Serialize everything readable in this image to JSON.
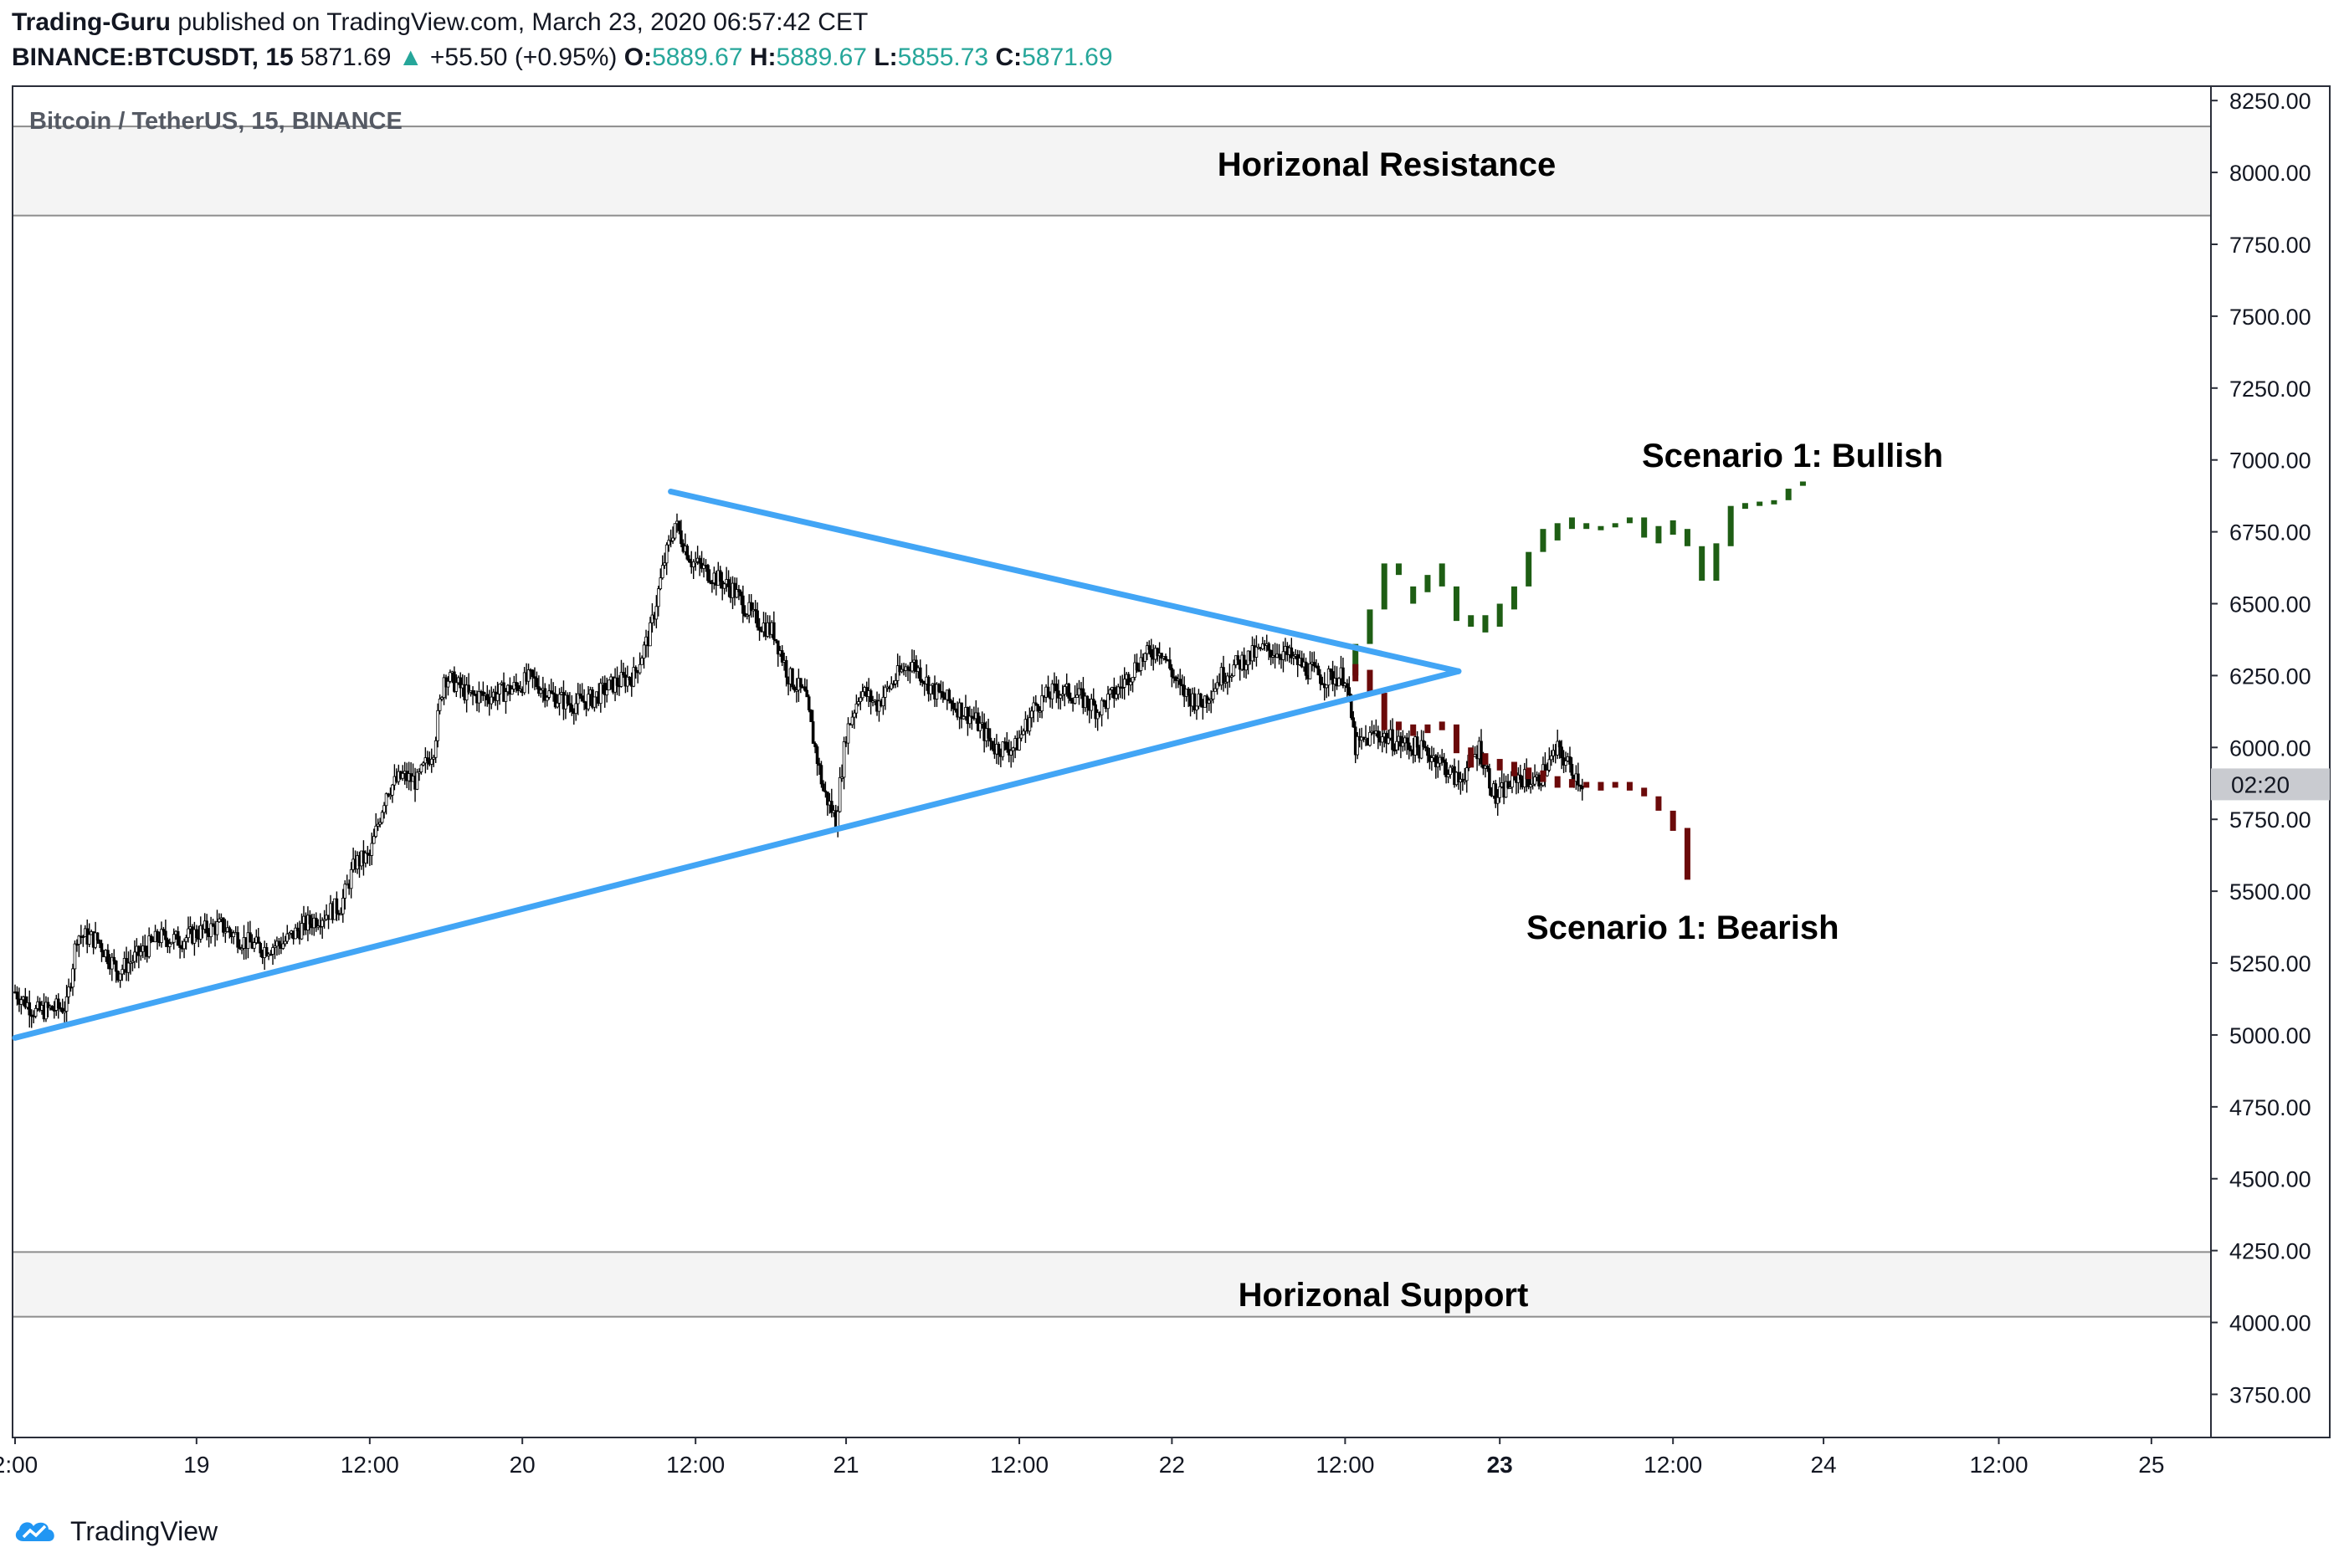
{
  "header": {
    "author": "Trading-Guru",
    "published_text": "published on TradingView.com, March 23, 2020 06:57:42 CET",
    "symbol": "BINANCE:BTCUSDT, 15",
    "last": "5871.69",
    "up_arrow": "▲",
    "change": "+55.50 (+0.95%)",
    "o_label": "O:",
    "o_value": "5889.67",
    "h_label": "H:",
    "h_value": "5889.67",
    "l_label": "L:",
    "l_value": "5855.73",
    "c_label": "C:",
    "c_value": "5871.69"
  },
  "footer": {
    "brand": "TradingView"
  },
  "chart_data": {
    "type": "candlestick",
    "title": "Bitcoin / TetherUS, 15, BINANCE",
    "y_range": [
      3600,
      8300
    ],
    "x_range_hours": [
      0,
      1060
    ],
    "y_ticks": [
      "8250.00",
      "8000.00",
      "7750.00",
      "7500.00",
      "7250.00",
      "7000.00",
      "6750.00",
      "6500.00",
      "6250.00",
      "6000.00",
      "5750.00",
      "5500.00",
      "5250.00",
      "5000.00",
      "4750.00",
      "4500.00",
      "4250.00",
      "4000.00",
      "3750.00"
    ],
    "x_ticks": [
      {
        "label": "2:00",
        "t": 0
      },
      {
        "label": "19",
        "t": 88
      },
      {
        "label": "12:00",
        "t": 172
      },
      {
        "label": "20",
        "t": 246
      },
      {
        "label": "12:00",
        "t": 330
      },
      {
        "label": "21",
        "t": 403
      },
      {
        "label": "12:00",
        "t": 487
      },
      {
        "label": "22",
        "t": 561
      },
      {
        "label": "12:00",
        "t": 645
      },
      {
        "label": "23",
        "t": 720,
        "bold": true
      },
      {
        "label": "12:00",
        "t": 804
      },
      {
        "label": "24",
        "t": 877
      },
      {
        "label": "12:00",
        "t": 962
      },
      {
        "label": "25",
        "t": 1036
      }
    ],
    "price_label": "02:20",
    "price_label_value": 5871.69,
    "zones": [
      {
        "name": "Horizonal Resistance",
        "from": 7850,
        "to": 8160
      },
      {
        "name": "Horizonal Support",
        "from": 4020,
        "to": 4245
      }
    ],
    "trendlines": [
      {
        "name": "upper-trendline",
        "from": [
          318,
          6890
        ],
        "to": [
          700,
          6265
        ]
      },
      {
        "name": "lower-trendline",
        "from": [
          0,
          4990
        ],
        "to": [
          700,
          6265
        ]
      }
    ],
    "price_path": [
      [
        0,
        5150
      ],
      [
        10,
        5080
      ],
      [
        25,
        5100
      ],
      [
        30,
        5350
      ],
      [
        40,
        5330
      ],
      [
        50,
        5220
      ],
      [
        60,
        5280
      ],
      [
        70,
        5340
      ],
      [
        80,
        5330
      ],
      [
        90,
        5360
      ],
      [
        100,
        5380
      ],
      [
        110,
        5330
      ],
      [
        120,
        5300
      ],
      [
        130,
        5320
      ],
      [
        140,
        5380
      ],
      [
        150,
        5420
      ],
      [
        158,
        5450
      ],
      [
        165,
        5600
      ],
      [
        172,
        5620
      ],
      [
        180,
        5850
      ],
      [
        188,
        5900
      ],
      [
        195,
        5880
      ],
      [
        203,
        6000
      ],
      [
        208,
        6250
      ],
      [
        214,
        6220
      ],
      [
        220,
        6180
      ],
      [
        230,
        6180
      ],
      [
        240,
        6200
      ],
      [
        250,
        6240
      ],
      [
        260,
        6180
      ],
      [
        270,
        6150
      ],
      [
        280,
        6170
      ],
      [
        290,
        6220
      ],
      [
        300,
        6250
      ],
      [
        308,
        6400
      ],
      [
        315,
        6650
      ],
      [
        320,
        6780
      ],
      [
        328,
        6650
      ],
      [
        338,
        6600
      ],
      [
        348,
        6550
      ],
      [
        358,
        6450
      ],
      [
        368,
        6400
      ],
      [
        375,
        6250
      ],
      [
        383,
        6180
      ],
      [
        392,
        5850
      ],
      [
        398,
        5750
      ],
      [
        403,
        6050
      ],
      [
        410,
        6200
      ],
      [
        418,
        6150
      ],
      [
        428,
        6250
      ],
      [
        435,
        6300
      ],
      [
        445,
        6200
      ],
      [
        455,
        6150
      ],
      [
        465,
        6100
      ],
      [
        475,
        6000
      ],
      [
        485,
        6000
      ],
      [
        495,
        6150
      ],
      [
        505,
        6200
      ],
      [
        515,
        6180
      ],
      [
        525,
        6130
      ],
      [
        535,
        6200
      ],
      [
        545,
        6300
      ],
      [
        555,
        6350
      ],
      [
        565,
        6200
      ],
      [
        575,
        6150
      ],
      [
        585,
        6250
      ],
      [
        595,
        6300
      ],
      [
        605,
        6340
      ],
      [
        615,
        6330
      ],
      [
        625,
        6280
      ],
      [
        635,
        6240
      ],
      [
        645,
        6250
      ],
      [
        650,
        6000
      ],
      [
        660,
        6050
      ],
      [
        670,
        6020
      ],
      [
        680,
        6000
      ],
      [
        690,
        5960
      ],
      [
        700,
        5880
      ],
      [
        710,
        6000
      ],
      [
        718,
        5820
      ],
      [
        728,
        5900
      ],
      [
        738,
        5880
      ],
      [
        748,
        5990
      ],
      [
        760,
        5875
      ]
    ],
    "scenarios": [
      {
        "name": "Scenario 1: Bullish",
        "color": "#1e5e14",
        "candles": [
          [
            650,
            6250,
            6360
          ],
          [
            657,
            6360,
            6480
          ],
          [
            664,
            6480,
            6640
          ],
          [
            671,
            6600,
            6640
          ],
          [
            678,
            6500,
            6560
          ],
          [
            685,
            6540,
            6600
          ],
          [
            692,
            6560,
            6640
          ],
          [
            699,
            6440,
            6560
          ],
          [
            706,
            6420,
            6460
          ],
          [
            713,
            6400,
            6460
          ],
          [
            720,
            6420,
            6500
          ],
          [
            727,
            6480,
            6560
          ],
          [
            734,
            6560,
            6680
          ],
          [
            741,
            6680,
            6760
          ],
          [
            748,
            6720,
            6780
          ],
          [
            755,
            6760,
            6800
          ],
          [
            762,
            6760,
            6780
          ],
          [
            769,
            6760,
            6770
          ],
          [
            776,
            6770,
            6780
          ],
          [
            783,
            6780,
            6800
          ],
          [
            790,
            6730,
            6800
          ],
          [
            797,
            6710,
            6770
          ],
          [
            804,
            6740,
            6790
          ],
          [
            811,
            6700,
            6760
          ],
          [
            818,
            6580,
            6700
          ],
          [
            825,
            6580,
            6710
          ],
          [
            832,
            6700,
            6840
          ],
          [
            839,
            6830,
            6850
          ],
          [
            846,
            6840,
            6855
          ],
          [
            853,
            6850,
            6860
          ],
          [
            860,
            6860,
            6900
          ],
          [
            867,
            6910,
            6925
          ]
        ]
      },
      {
        "name": "Scenario 1: Bearish",
        "color": "#6b0a0a",
        "candles": [
          [
            650,
            6230,
            6290
          ],
          [
            657,
            6190,
            6270
          ],
          [
            664,
            6060,
            6190
          ],
          [
            671,
            6060,
            6090
          ],
          [
            678,
            6040,
            6080
          ],
          [
            685,
            6050,
            6080
          ],
          [
            692,
            6060,
            6090
          ],
          [
            699,
            5980,
            6080
          ],
          [
            706,
            5930,
            6000
          ],
          [
            713,
            5940,
            5980
          ],
          [
            720,
            5920,
            5960
          ],
          [
            727,
            5900,
            5950
          ],
          [
            734,
            5890,
            5930
          ],
          [
            741,
            5880,
            5920
          ],
          [
            748,
            5860,
            5900
          ],
          [
            755,
            5860,
            5890
          ],
          [
            762,
            5860,
            5880
          ],
          [
            769,
            5850,
            5880
          ],
          [
            776,
            5860,
            5880
          ],
          [
            783,
            5850,
            5880
          ],
          [
            790,
            5830,
            5860
          ],
          [
            797,
            5780,
            5830
          ],
          [
            804,
            5710,
            5780
          ],
          [
            811,
            5540,
            5720
          ]
        ]
      }
    ]
  }
}
